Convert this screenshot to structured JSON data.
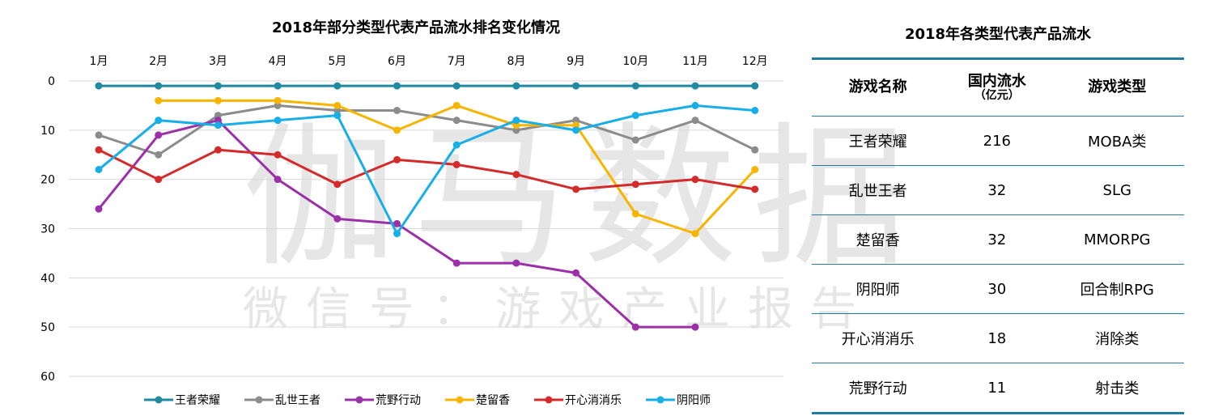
{
  "watermark": {
    "main": "伽马数据",
    "sub": "微信号：游戏产业报告"
  },
  "chart_data": {
    "type": "line",
    "title": "2018年部分类型代表产品流水排名变化情况",
    "categories": [
      "1月",
      "2月",
      "3月",
      "4月",
      "5月",
      "6月",
      "7月",
      "8月",
      "9月",
      "10月",
      "11月",
      "12月"
    ],
    "ylim": [
      0,
      60
    ],
    "y_inverted": true,
    "y_ticks": [
      "0",
      "10",
      "20",
      "30",
      "40",
      "50",
      "60"
    ],
    "grid": true,
    "legend_position": "bottom",
    "series": [
      {
        "name": "王者荣耀",
        "color": "#1f8aa0",
        "values": [
          1,
          1,
          1,
          1,
          1,
          1,
          1,
          1,
          1,
          1,
          1,
          1
        ]
      },
      {
        "name": "乱世王者",
        "color": "#8c8c8c",
        "values": [
          11,
          15,
          7,
          5,
          6,
          6,
          8,
          10,
          8,
          12,
          8,
          14
        ]
      },
      {
        "name": "荒野行动",
        "color": "#9b30a8",
        "values": [
          26,
          11,
          8,
          20,
          28,
          29,
          37,
          37,
          39,
          50,
          50,
          null
        ]
      },
      {
        "name": "楚留香",
        "color": "#f7b500",
        "values": [
          null,
          4,
          4,
          4,
          5,
          10,
          5,
          9,
          9,
          27,
          31,
          18
        ]
      },
      {
        "name": "开心消消乐",
        "color": "#d42a2a",
        "values": [
          14,
          20,
          14,
          15,
          21,
          16,
          17,
          19,
          22,
          21,
          20,
          22
        ]
      },
      {
        "name": "阴阳师",
        "color": "#18aee8",
        "values": [
          18,
          8,
          9,
          8,
          7,
          31,
          13,
          8,
          10,
          7,
          5,
          6
        ]
      }
    ]
  },
  "table": {
    "title": "2018年各类型代表产品流水",
    "headers": {
      "name": "游戏名称",
      "revenue": "国内流水",
      "revenue_unit": "（亿元）",
      "type": "游戏类型"
    },
    "rows": [
      {
        "name": "王者荣耀",
        "revenue": "216",
        "type": "MOBA类"
      },
      {
        "name": "乱世王者",
        "revenue": "32",
        "type": "SLG"
      },
      {
        "name": "楚留香",
        "revenue": "32",
        "type": "MMORPG"
      },
      {
        "name": "阴阳师",
        "revenue": "30",
        "type": "回合制RPG"
      },
      {
        "name": "开心消消乐",
        "revenue": "18",
        "type": "消除类"
      },
      {
        "name": "荒野行动",
        "revenue": "11",
        "type": "射击类"
      }
    ]
  }
}
